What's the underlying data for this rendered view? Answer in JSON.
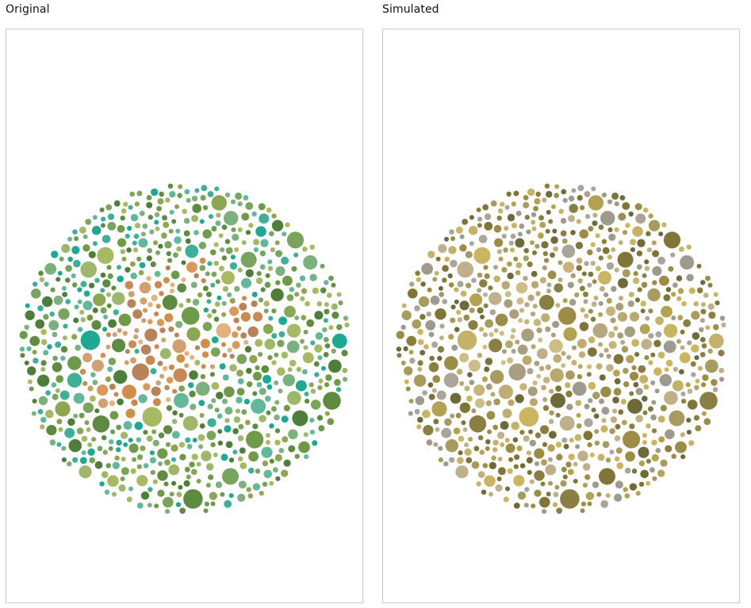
{
  "panels": {
    "original": {
      "label": "Original",
      "plate": "color-vision-test-plate",
      "colors": {
        "background_dots": [
          "#5e8a41",
          "#6e9a4a",
          "#8ea654",
          "#a9b862",
          "#79a45d",
          "#4f7d3a",
          "#9fb76a",
          "#7db07f",
          "#3faf96",
          "#20a893",
          "#63b79a"
        ],
        "figure_dots": [
          "#d89a5a",
          "#cf8f4c",
          "#e3b27e",
          "#b8825a",
          "#d0a070",
          "#c88a55"
        ]
      }
    },
    "simulated": {
      "label": "Simulated",
      "plate": "color-vision-test-plate-simulated",
      "colors": {
        "background_dots": [
          "#8a7f42",
          "#9c8d46",
          "#b3a252",
          "#c9b562",
          "#7f7538",
          "#a79b60",
          "#bdb08a",
          "#9e9a8e",
          "#aaa49a",
          "#c4b26a",
          "#6f6a3a"
        ],
        "figure_dots": [
          "#c6b57a",
          "#bfae74",
          "#b5a77e",
          "#a89f80",
          "#cdbd88",
          "#b8a96e"
        ]
      }
    }
  }
}
